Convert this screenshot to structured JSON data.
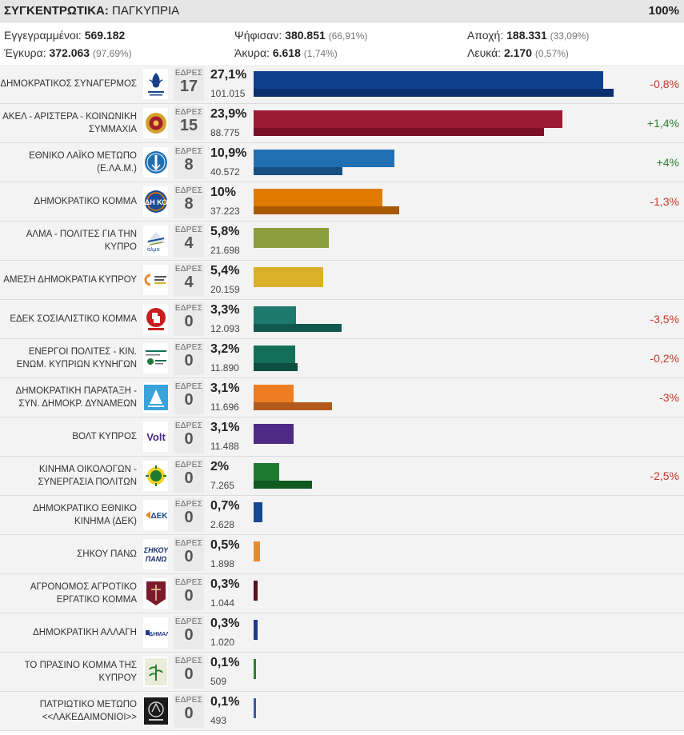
{
  "header": {
    "title_bold": "ΣΥΓΚΕΝΤΡΩΤΙΚΑ:",
    "title_rest": " ΠΑΓΚΥΠΡΙΑ",
    "counted": "100%"
  },
  "stats": {
    "registered_label": "Εγγεγραμμένοι:",
    "registered": "569.182",
    "voted_label": "Ψήφισαν:",
    "voted": "380.851",
    "voted_pct": "(66,91%)",
    "abstain_label": "Αποχή:",
    "abstain": "188.331",
    "abstain_pct": "(33,09%)",
    "valid_label": "Έγκυρα:",
    "valid": "372.063",
    "valid_pct": "(97,69%)",
    "invalid_label": "Άκυρα:",
    "invalid": "6.618",
    "invalid_pct": "(1,74%)",
    "blank_label": "Λευκά:",
    "blank": "2.170",
    "blank_pct": "(0,57%)"
  },
  "seats_label": "ΕΔΡΕΣ",
  "chart_data": {
    "type": "bar",
    "orientation": "horizontal",
    "series": [
      {
        "name": "current",
        "values": [
          27.1,
          23.9,
          10.9,
          10,
          5.8,
          5.4,
          3.3,
          3.2,
          3.1,
          3.1,
          2,
          0.7,
          0.5,
          0.3,
          0.3,
          0.1,
          0.1
        ]
      },
      {
        "name": "previous",
        "values": [
          27.9,
          22.5,
          6.9,
          11.3,
          null,
          null,
          6.8,
          3.4,
          6.1,
          null,
          4.5,
          null,
          null,
          null,
          null,
          null,
          null
        ]
      }
    ],
    "xlim": [
      0,
      28.5
    ],
    "parties": [
      {
        "name": "ΔΗΜΟΚΡΑΤΙΚΟΣ ΣΥΝΑΓΕΡΜΟΣ",
        "seats": "17",
        "pct_label": "27,1%",
        "pct": 27.1,
        "votes": "101.015",
        "prev_pct": 27.9,
        "change": "-0,8%",
        "change_sign": "neg",
        "color": "#0d3f8f",
        "prev_color": "#0a2f6e",
        "logo_icon": "disy-logo-icon"
      },
      {
        "name": "ΑΚΕΛ - ΑΡΙΣΤΕΡΑ - ΚΟΙΝΩΝΙΚΗ ΣΥΜΜΑΧΙΑ",
        "seats": "15",
        "pct_label": "23,9%",
        "pct": 23.9,
        "votes": "88.775",
        "prev_pct": 22.5,
        "change": "+1,4%",
        "change_sign": "pos",
        "color": "#9b1a34",
        "prev_color": "#7a1027",
        "logo_icon": "akel-logo-icon"
      },
      {
        "name": "ΕΘΝΙΚΟ ΛΑΪΚΟ ΜΕΤΩΠΟ (Ε.ΛΑ.Μ.)",
        "seats": "8",
        "pct_label": "10,9%",
        "pct": 10.9,
        "votes": "40.572",
        "prev_pct": 6.9,
        "change": "+4%",
        "change_sign": "pos",
        "color": "#1f6fb2",
        "prev_color": "#174f82",
        "logo_icon": "elam-logo-icon"
      },
      {
        "name": "ΔΗΜΟΚΡΑΤΙΚΟ ΚΟΜΜΑ",
        "seats": "8",
        "pct_label": "10%",
        "pct": 10,
        "votes": "37.223",
        "prev_pct": 11.3,
        "change": "-1,3%",
        "change_sign": "neg",
        "color": "#e07b00",
        "prev_color": "#a85a05",
        "logo_icon": "diko-logo-icon"
      },
      {
        "name": "ΑΛΜΑ - ΠΟΛΙΤΕΣ ΓΙΑ ΤΗΝ ΚΥΠΡΟ",
        "seats": "4",
        "pct_label": "5,8%",
        "pct": 5.8,
        "votes": "21.698",
        "prev_pct": null,
        "change": "",
        "change_sign": "",
        "color": "#8c9d3c",
        "prev_color": "",
        "logo_icon": "alma-logo-icon"
      },
      {
        "name": "ΑΜΕΣΗ ΔΗΜΟΚΡΑΤΙΑ ΚΥΠΡΟΥ",
        "seats": "4",
        "pct_label": "5,4%",
        "pct": 5.4,
        "votes": "20.159",
        "prev_pct": null,
        "change": "",
        "change_sign": "",
        "color": "#d9b027",
        "prev_color": "",
        "logo_icon": "direct-democracy-logo-icon"
      },
      {
        "name": "ΕΔΕΚ ΣΟΣΙΑΛΙΣΤΙΚΟ ΚΟΜΜΑ",
        "seats": "0",
        "pct_label": "3,3%",
        "pct": 3.3,
        "votes": "12.093",
        "prev_pct": 6.8,
        "change": "-3,5%",
        "change_sign": "neg",
        "color": "#1e7a6c",
        "prev_color": "#12574d",
        "logo_icon": "edek-logo-icon"
      },
      {
        "name": "ΕΝΕΡΓΟΙ ΠΟΛΙΤΕΣ - ΚΙΝ. ΕΝΩΜ. ΚΥΠΡΙΩΝ ΚΥΝΗΓΩΝ",
        "seats": "0",
        "pct_label": "3,2%",
        "pct": 3.2,
        "votes": "11.890",
        "prev_pct": 3.4,
        "change": "-0,2%",
        "change_sign": "neg",
        "color": "#127058",
        "prev_color": "#0c4f3f",
        "logo_icon": "active-citizens-logo-icon"
      },
      {
        "name": "ΔΗΜΟΚΡΑΤΙΚΗ ΠΑΡΑΤΑΞΗ - ΣΥΝ. ΔΗΜΟΚΡ. ΔΥΝΑΜΕΩΝ",
        "seats": "0",
        "pct_label": "3,1%",
        "pct": 3.1,
        "votes": "11.696",
        "prev_pct": 6.1,
        "change": "-3%",
        "change_sign": "neg",
        "color": "#ee7d22",
        "prev_color": "#b25a1c",
        "logo_icon": "dipa-logo-icon"
      },
      {
        "name": "ΒΟΛΤ ΚΥΠΡΟΣ",
        "seats": "0",
        "pct_label": "3,1%",
        "pct": 3.1,
        "votes": "11.488",
        "prev_pct": null,
        "change": "",
        "change_sign": "",
        "color": "#4e2a84",
        "prev_color": "",
        "logo_icon": "volt-logo-icon"
      },
      {
        "name": "ΚΙΝΗΜΑ ΟΙΚΟΛΟΓΩΝ - ΣΥΝΕΡΓΑΣΙΑ ΠΟΛΙΤΩΝ",
        "seats": "0",
        "pct_label": "2%",
        "pct": 2,
        "votes": "7.265",
        "prev_pct": 4.5,
        "change": "-2,5%",
        "change_sign": "neg",
        "color": "#1e7a31",
        "prev_color": "#0e5a1f",
        "logo_icon": "ecologists-logo-icon"
      },
      {
        "name": "ΔΗΜΟΚΡΑΤΙΚΟ ΕΘΝΙΚΟ ΚΙΝΗΜΑ (ΔΕΚ)",
        "seats": "0",
        "pct_label": "0,7%",
        "pct": 0.7,
        "votes": "2.628",
        "prev_pct": null,
        "change": "",
        "change_sign": "",
        "color": "#16468f",
        "prev_color": "",
        "logo_icon": "dek-logo-icon"
      },
      {
        "name": "ΣΗΚΟΥ ΠΑΝΩ",
        "seats": "0",
        "pct_label": "0,5%",
        "pct": 0.5,
        "votes": "1.898",
        "prev_pct": null,
        "change": "",
        "change_sign": "",
        "color": "#e8892e",
        "prev_color": "",
        "logo_icon": "sikou-pano-logo-icon"
      },
      {
        "name": "ΑΓΡΟΝΟΜΟΣ ΑΓΡΟΤΙΚΟ ΕΡΓΑΤΙΚΟ ΚΟΜΜΑ",
        "seats": "0",
        "pct_label": "0,3%",
        "pct": 0.3,
        "votes": "1.044",
        "prev_pct": null,
        "change": "",
        "change_sign": "",
        "color": "#5a0f1c",
        "prev_color": "",
        "logo_icon": "agronomos-logo-icon"
      },
      {
        "name": "ΔΗΜΟΚΡΑΤΙΚΗ ΑΛΛΑΓΗ",
        "seats": "0",
        "pct_label": "0,3%",
        "pct": 0.3,
        "votes": "1.020",
        "prev_pct": null,
        "change": "",
        "change_sign": "",
        "color": "#22388e",
        "prev_color": "",
        "logo_icon": "dimal-logo-icon"
      },
      {
        "name": "ΤΟ ΠΡΑΣΙΝΟ ΚΟΜΜΑ ΤΗΣ ΚΥΠΡΟΥ",
        "seats": "0",
        "pct_label": "0,1%",
        "pct": 0.1,
        "votes": "509",
        "prev_pct": null,
        "change": "",
        "change_sign": "",
        "color": "#2e7d32",
        "prev_color": "",
        "logo_icon": "green-party-logo-icon"
      },
      {
        "name": "ΠΑΤΡΙΩΤΙΚΟ ΜΕΤΩΠΟ <<ΛΑΚΕΔΑΙΜΟΝΙΟΙ>>",
        "seats": "0",
        "pct_label": "0,1%",
        "pct": 0.1,
        "votes": "493",
        "prev_pct": null,
        "change": "",
        "change_sign": "",
        "color": "#3b5b9a",
        "prev_color": "",
        "logo_icon": "lakedaimonioi-logo-icon"
      }
    ]
  }
}
